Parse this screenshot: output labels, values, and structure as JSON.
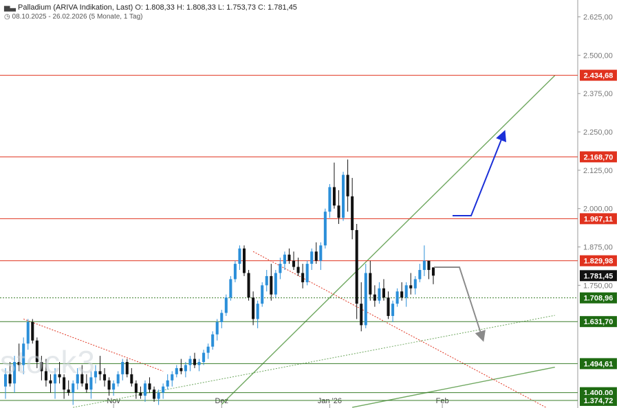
{
  "header": {
    "title": "Palladium (ARIVA Indikation, Last)",
    "open_label": "O:",
    "open": "1.808,33",
    "high_label": "H:",
    "high": "1.808,33",
    "low_label": "L:",
    "low": "1.753,73",
    "close_label": "C:",
    "close": "1.781,45",
    "range": "08.10.2025 - 26.02.2026",
    "period": "(5 Monate, 1 Tag)"
  },
  "watermark": "stock3",
  "colors": {
    "up": "#2b8fd9",
    "down": "#111111",
    "resistance": "#e0321e",
    "support": "#3a7d2a",
    "trend": "#6fa860",
    "dotted_red": "#e0321e",
    "arrow_up": "#1a2fd8",
    "arrow_down": "#8a8a8a"
  },
  "chart_data": {
    "type": "candlestick",
    "y_range": [
      1350,
      2680
    ],
    "y_ticks": [
      {
        "value": 2625,
        "label": "2.625,00"
      },
      {
        "value": 2500,
        "label": "2.500,00"
      },
      {
        "value": 2375,
        "label": "2.375,00"
      },
      {
        "value": 2250,
        "label": "2.250,00"
      },
      {
        "value": 2125,
        "label": "2.125,00"
      },
      {
        "value": 2000,
        "label": "2.000,00"
      },
      {
        "value": 1875,
        "label": "1.875,00"
      },
      {
        "value": 1750,
        "label": "1.750,00"
      }
    ],
    "x_labels": [
      {
        "index": 24,
        "label": "Nov"
      },
      {
        "index": 48,
        "label": "Dez"
      },
      {
        "index": 72,
        "label": "Jan '26"
      },
      {
        "index": 97,
        "label": "Feb"
      }
    ],
    "levels": [
      {
        "value": 2434.68,
        "label": "2.434,68",
        "kind": "resistance"
      },
      {
        "value": 2168.7,
        "label": "2.168,70",
        "kind": "resistance"
      },
      {
        "value": 1967.11,
        "label": "1.967,11",
        "kind": "resistance"
      },
      {
        "value": 1829.98,
        "label": "1.829,98",
        "kind": "resistance"
      },
      {
        "value": 1781.45,
        "label": "1.781,45",
        "kind": "last"
      },
      {
        "value": 1708.96,
        "label": "1.708,96",
        "kind": "support_dotted"
      },
      {
        "value": 1631.7,
        "label": "1.631,70",
        "kind": "support"
      },
      {
        "value": 1494.61,
        "label": "1.494,61",
        "kind": "support"
      },
      {
        "value": 1400.0,
        "label": "1.400,00",
        "kind": "support"
      },
      {
        "value": 1374.72,
        "label": "1.374,72",
        "kind": "support"
      }
    ],
    "candles": [
      [
        1420,
        1480,
        1380,
        1460
      ],
      [
        1460,
        1500,
        1420,
        1430
      ],
      [
        1430,
        1520,
        1400,
        1500
      ],
      [
        1500,
        1560,
        1470,
        1490
      ],
      [
        1490,
        1580,
        1460,
        1560
      ],
      [
        1560,
        1640,
        1540,
        1630
      ],
      [
        1630,
        1640,
        1560,
        1570
      ],
      [
        1570,
        1580,
        1480,
        1500
      ],
      [
        1500,
        1520,
        1440,
        1470
      ],
      [
        1470,
        1510,
        1420,
        1440
      ],
      [
        1440,
        1460,
        1400,
        1430
      ],
      [
        1430,
        1480,
        1380,
        1460
      ],
      [
        1460,
        1500,
        1430,
        1450
      ],
      [
        1450,
        1460,
        1380,
        1410
      ],
      [
        1410,
        1440,
        1390,
        1400
      ],
      [
        1400,
        1440,
        1360,
        1430
      ],
      [
        1430,
        1480,
        1410,
        1460
      ],
      [
        1460,
        1490,
        1420,
        1430
      ],
      [
        1430,
        1460,
        1400,
        1410
      ],
      [
        1410,
        1470,
        1380,
        1450
      ],
      [
        1450,
        1490,
        1430,
        1470
      ],
      [
        1470,
        1520,
        1440,
        1460
      ],
      [
        1460,
        1480,
        1420,
        1440
      ],
      [
        1440,
        1450,
        1390,
        1410
      ],
      [
        1410,
        1440,
        1390,
        1430
      ],
      [
        1430,
        1470,
        1420,
        1460
      ],
      [
        1460,
        1510,
        1440,
        1500
      ],
      [
        1500,
        1510,
        1450,
        1460
      ],
      [
        1460,
        1480,
        1420,
        1430
      ],
      [
        1430,
        1440,
        1380,
        1400
      ],
      [
        1400,
        1420,
        1380,
        1390
      ],
      [
        1390,
        1440,
        1370,
        1430
      ],
      [
        1430,
        1450,
        1400,
        1410
      ],
      [
        1410,
        1420,
        1370,
        1380
      ],
      [
        1380,
        1410,
        1360,
        1400
      ],
      [
        1400,
        1430,
        1380,
        1420
      ],
      [
        1420,
        1460,
        1410,
        1440
      ],
      [
        1440,
        1470,
        1420,
        1460
      ],
      [
        1460,
        1490,
        1450,
        1480
      ],
      [
        1480,
        1510,
        1460,
        1470
      ],
      [
        1470,
        1500,
        1450,
        1490
      ],
      [
        1490,
        1520,
        1470,
        1510
      ],
      [
        1510,
        1530,
        1480,
        1490
      ],
      [
        1490,
        1510,
        1470,
        1500
      ],
      [
        1500,
        1540,
        1490,
        1530
      ],
      [
        1530,
        1560,
        1510,
        1550
      ],
      [
        1550,
        1600,
        1540,
        1590
      ],
      [
        1590,
        1640,
        1570,
        1630
      ],
      [
        1630,
        1670,
        1610,
        1660
      ],
      [
        1660,
        1720,
        1650,
        1710
      ],
      [
        1710,
        1780,
        1700,
        1770
      ],
      [
        1770,
        1830,
        1760,
        1820
      ],
      [
        1820,
        1880,
        1800,
        1870
      ],
      [
        1870,
        1880,
        1780,
        1790
      ],
      [
        1790,
        1800,
        1700,
        1710
      ],
      [
        1710,
        1730,
        1620,
        1640
      ],
      [
        1640,
        1700,
        1610,
        1690
      ],
      [
        1690,
        1760,
        1680,
        1750
      ],
      [
        1750,
        1800,
        1730,
        1780
      ],
      [
        1780,
        1820,
        1700,
        1720
      ],
      [
        1720,
        1800,
        1710,
        1790
      ],
      [
        1790,
        1840,
        1770,
        1820
      ],
      [
        1820,
        1860,
        1800,
        1850
      ],
      [
        1850,
        1870,
        1820,
        1830
      ],
      [
        1830,
        1860,
        1800,
        1810
      ],
      [
        1810,
        1840,
        1780,
        1790
      ],
      [
        1790,
        1820,
        1740,
        1760
      ],
      [
        1760,
        1830,
        1750,
        1820
      ],
      [
        1820,
        1870,
        1800,
        1860
      ],
      [
        1860,
        1890,
        1820,
        1830
      ],
      [
        1830,
        1890,
        1800,
        1880
      ],
      [
        1880,
        2000,
        1870,
        1990
      ],
      [
        1990,
        2080,
        1970,
        2070
      ],
      [
        2070,
        2150,
        2000,
        2010
      ],
      [
        2010,
        2060,
        1950,
        1970
      ],
      [
        1970,
        2120,
        1960,
        2110
      ],
      [
        2110,
        2160,
        1990,
        2040
      ],
      [
        2040,
        2100,
        1900,
        1930
      ],
      [
        1930,
        1950,
        1640,
        1690
      ],
      [
        1690,
        1760,
        1600,
        1620
      ],
      [
        1620,
        1820,
        1610,
        1790
      ],
      [
        1790,
        1830,
        1700,
        1720
      ],
      [
        1720,
        1750,
        1680,
        1700
      ],
      [
        1700,
        1760,
        1690,
        1740
      ],
      [
        1740,
        1770,
        1700,
        1710
      ],
      [
        1710,
        1730,
        1640,
        1650
      ],
      [
        1650,
        1700,
        1630,
        1690
      ],
      [
        1690,
        1740,
        1680,
        1730
      ],
      [
        1730,
        1760,
        1700,
        1710
      ],
      [
        1710,
        1760,
        1680,
        1750
      ],
      [
        1750,
        1790,
        1720,
        1740
      ],
      [
        1740,
        1780,
        1720,
        1770
      ],
      [
        1770,
        1820,
        1760,
        1800
      ],
      [
        1800,
        1880,
        1780,
        1830
      ],
      [
        1830,
        1830,
        1770,
        1800
      ],
      [
        1808.33,
        1808.33,
        1753.73,
        1781.45
      ]
    ]
  }
}
